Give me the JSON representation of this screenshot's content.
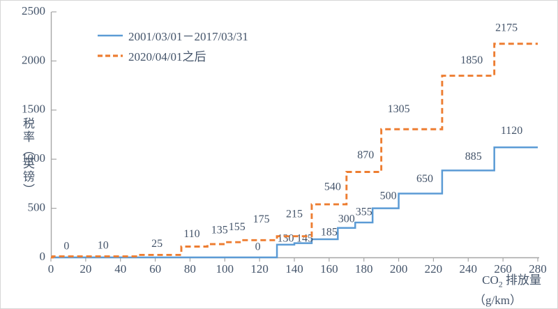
{
  "chart_data": {
    "type": "line",
    "subtype": "step",
    "title": "",
    "xlabel_prefix": "CO",
    "xlabel_sub": "2",
    "xlabel_rest": " 排放量",
    "xlabel_line2": "（g/km）",
    "ylabel": "税率（英镑）",
    "xlim": [
      0,
      280
    ],
    "ylim": [
      0,
      2500
    ],
    "x_ticks": [
      0,
      20,
      40,
      60,
      80,
      100,
      120,
      140,
      160,
      180,
      200,
      220,
      240,
      260,
      280
    ],
    "y_ticks": [
      0,
      500,
      1000,
      1500,
      2000,
      2500
    ],
    "grid": false,
    "legend_position": "top-left-inside",
    "axis_color": "#A6A6A6",
    "text_color": "#44546A",
    "steps_format": [
      "co2_from_g_per_km",
      "co2_to_g_per_km",
      "tax_gbp"
    ],
    "series": [
      {
        "name": "2001/03/01－2017/03/31",
        "color": "#5B9BD5",
        "dash": "solid",
        "steps": [
          [
            0,
            130,
            0
          ],
          [
            130,
            140,
            130
          ],
          [
            140,
            150,
            145
          ],
          [
            150,
            165,
            185
          ],
          [
            165,
            175,
            300
          ],
          [
            175,
            185,
            355
          ],
          [
            185,
            200,
            500
          ],
          [
            200,
            225,
            650
          ],
          [
            225,
            255,
            885
          ],
          [
            255,
            280,
            1120
          ]
        ],
        "labels": [
          {
            "text": "0",
            "x": 119,
            "dy": 14
          },
          {
            "text": "130",
            "x": 135,
            "dy": 8
          },
          {
            "text": "145",
            "x": 146,
            "dy": 6
          },
          {
            "text": "185",
            "x": 160,
            "dy": 9
          },
          {
            "text": "300",
            "x": 170,
            "dy": 12
          },
          {
            "text": "355",
            "x": 180,
            "dy": 14
          },
          {
            "text": "500",
            "x": 194,
            "dy": 17
          },
          {
            "text": "650",
            "x": 215,
            "dy": 20
          },
          {
            "text": "885",
            "x": 243,
            "dy": 19
          },
          {
            "text": "1120",
            "x": 265,
            "dy": 23
          }
        ]
      },
      {
        "name": "2020/04/01之后",
        "color": "#ED7D31",
        "dash": "dashed",
        "steps": [
          [
            0,
            1,
            0
          ],
          [
            1,
            50,
            10
          ],
          [
            50,
            75,
            25
          ],
          [
            75,
            90,
            110
          ],
          [
            90,
            100,
            135
          ],
          [
            100,
            110,
            155
          ],
          [
            110,
            130,
            175
          ],
          [
            130,
            150,
            215
          ],
          [
            150,
            170,
            540
          ],
          [
            170,
            190,
            870
          ],
          [
            190,
            225,
            1305
          ],
          [
            225,
            255,
            1850
          ],
          [
            255,
            280,
            2175
          ]
        ],
        "labels": [
          {
            "text": "0",
            "x": 9,
            "dy": 14
          },
          {
            "text": "10",
            "x": 30,
            "dy": 15
          },
          {
            "text": "25",
            "x": 61,
            "dy": 15
          },
          {
            "text": "110",
            "x": 81,
            "dy": 17
          },
          {
            "text": "135",
            "x": 97,
            "dy": 19
          },
          {
            "text": "155",
            "x": 107,
            "dy": 21
          },
          {
            "text": "175",
            "x": 121,
            "dy": 29
          },
          {
            "text": "215",
            "x": 140,
            "dy": 31
          },
          {
            "text": "540",
            "x": 162,
            "dy": 24
          },
          {
            "text": "870",
            "x": 181,
            "dy": 23
          },
          {
            "text": "1305",
            "x": 200,
            "dy": 28
          },
          {
            "text": "1850",
            "x": 242,
            "dy": 21
          },
          {
            "text": "2175",
            "x": 262,
            "dy": 22
          }
        ]
      }
    ]
  }
}
